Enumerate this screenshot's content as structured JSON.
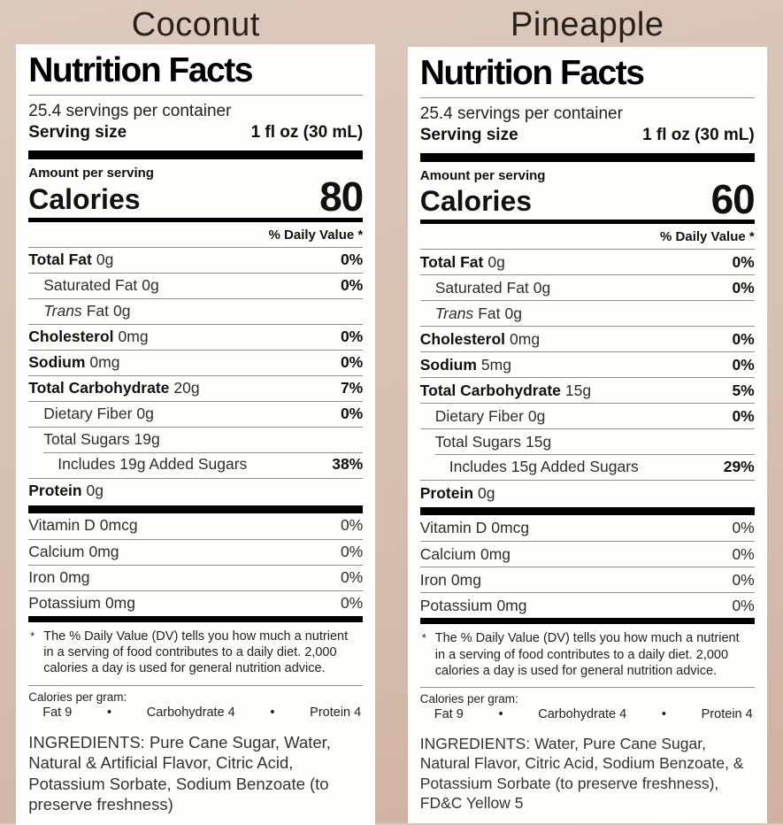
{
  "background": {
    "top": "#dccabd",
    "bottom": "#cfb2a2"
  },
  "labels": [
    {
      "flavor": "Coconut",
      "title": "Nutrition Facts",
      "servings": "25.4 servings per container",
      "serving_size_label": "Serving size",
      "serving_size_value": "1 fl oz (30 mL)",
      "amount_per_serving": "Amount per serving",
      "calories_label": "Calories",
      "calories": "80",
      "dv_header": "% Daily Value *",
      "rows": [
        {
          "name": "Total Fat",
          "amount": "0g",
          "dv": "0%"
        },
        {
          "name": "Saturated Fat",
          "amount": "0g",
          "dv": "0%"
        },
        {
          "name_italic": "Trans",
          "name": "Fat",
          "amount": "0g",
          "dv": ""
        },
        {
          "name": "Cholesterol",
          "amount": "0mg",
          "dv": "0%"
        },
        {
          "name": "Sodium",
          "amount": "0mg",
          "dv": "0%"
        },
        {
          "name": "Total Carbohydrate",
          "amount": "20g",
          "dv": "7%"
        },
        {
          "name": "Dietary Fiber",
          "amount": "0g",
          "dv": "0%"
        },
        {
          "name": "Total Sugars",
          "amount": "19g",
          "dv": ""
        },
        {
          "name": "Includes 19g Added Sugars",
          "amount": "",
          "dv": "38%"
        },
        {
          "name": "Protein",
          "amount": "0g",
          "dv": ""
        }
      ],
      "vitamins": [
        {
          "name": "Vitamin D",
          "amount": "0mcg",
          "dv": "0%"
        },
        {
          "name": "Calcium",
          "amount": "0mg",
          "dv": "0%"
        },
        {
          "name": "Iron",
          "amount": "0mg",
          "dv": "0%"
        },
        {
          "name": "Potassium",
          "amount": "0mg",
          "dv": "0%"
        }
      ],
      "footnote_symbol": "*",
      "footnote": "The % Daily Value (DV) tells you how much a nutrient in a serving of food contributes to a daily diet. 2,000 calories a day is used for general nutrition advice.",
      "cpg_label": "Calories per gram:",
      "cpg_fat": "Fat 9",
      "cpg_bullet": "•",
      "cpg_carb": "Carbohydrate 4",
      "cpg_protein": "Protein 4",
      "ingredients": "INGREDIENTS: Pure Cane Sugar, Water, Natural & Artificial Flavor, Citric Acid, Potassium Sorbate, Sodium Benzoate (to preserve freshness)"
    },
    {
      "flavor": "Pineapple",
      "title": "Nutrition Facts",
      "servings": "25.4 servings per container",
      "serving_size_label": "Serving size",
      "serving_size_value": "1 fl oz (30 mL)",
      "amount_per_serving": "Amount per serving",
      "calories_label": "Calories",
      "calories": "60",
      "dv_header": "% Daily Value *",
      "rows": [
        {
          "name": "Total Fat",
          "amount": "0g",
          "dv": "0%"
        },
        {
          "name": "Saturated Fat",
          "amount": "0g",
          "dv": "0%"
        },
        {
          "name_italic": "Trans",
          "name": "Fat",
          "amount": "0g",
          "dv": ""
        },
        {
          "name": "Cholesterol",
          "amount": "0mg",
          "dv": "0%"
        },
        {
          "name": "Sodium",
          "amount": "5mg",
          "dv": "0%"
        },
        {
          "name": "Total Carbohydrate",
          "amount": "15g",
          "dv": "5%"
        },
        {
          "name": "Dietary Fiber",
          "amount": "0g",
          "dv": "0%"
        },
        {
          "name": "Total Sugars",
          "amount": "15g",
          "dv": ""
        },
        {
          "name": "Includes 15g Added Sugars",
          "amount": "",
          "dv": "29%"
        },
        {
          "name": "Protein",
          "amount": "0g",
          "dv": ""
        }
      ],
      "vitamins": [
        {
          "name": "Vitamin D",
          "amount": "0mcg",
          "dv": "0%"
        },
        {
          "name": "Calcium",
          "amount": "0mg",
          "dv": "0%"
        },
        {
          "name": "Iron",
          "amount": "0mg",
          "dv": "0%"
        },
        {
          "name": "Potassium",
          "amount": "0mg",
          "dv": "0%"
        }
      ],
      "footnote_symbol": "*",
      "footnote": "The % Daily Value (DV) tells you how much a nutrient in a serving of food contributes to a daily diet. 2,000 calories a day is used for general nutrition advice.",
      "cpg_label": "Calories per gram:",
      "cpg_fat": "Fat 9",
      "cpg_bullet": "•",
      "cpg_carb": "Carbohydrate 4",
      "cpg_protein": "Protein 4",
      "ingredients": "INGREDIENTS: Water, Pure Cane Sugar, Natural Flavor, Citric Acid, Sodium Benzoate, & Potassium Sorbate (to preserve freshness), FD&C Yellow 5"
    }
  ]
}
